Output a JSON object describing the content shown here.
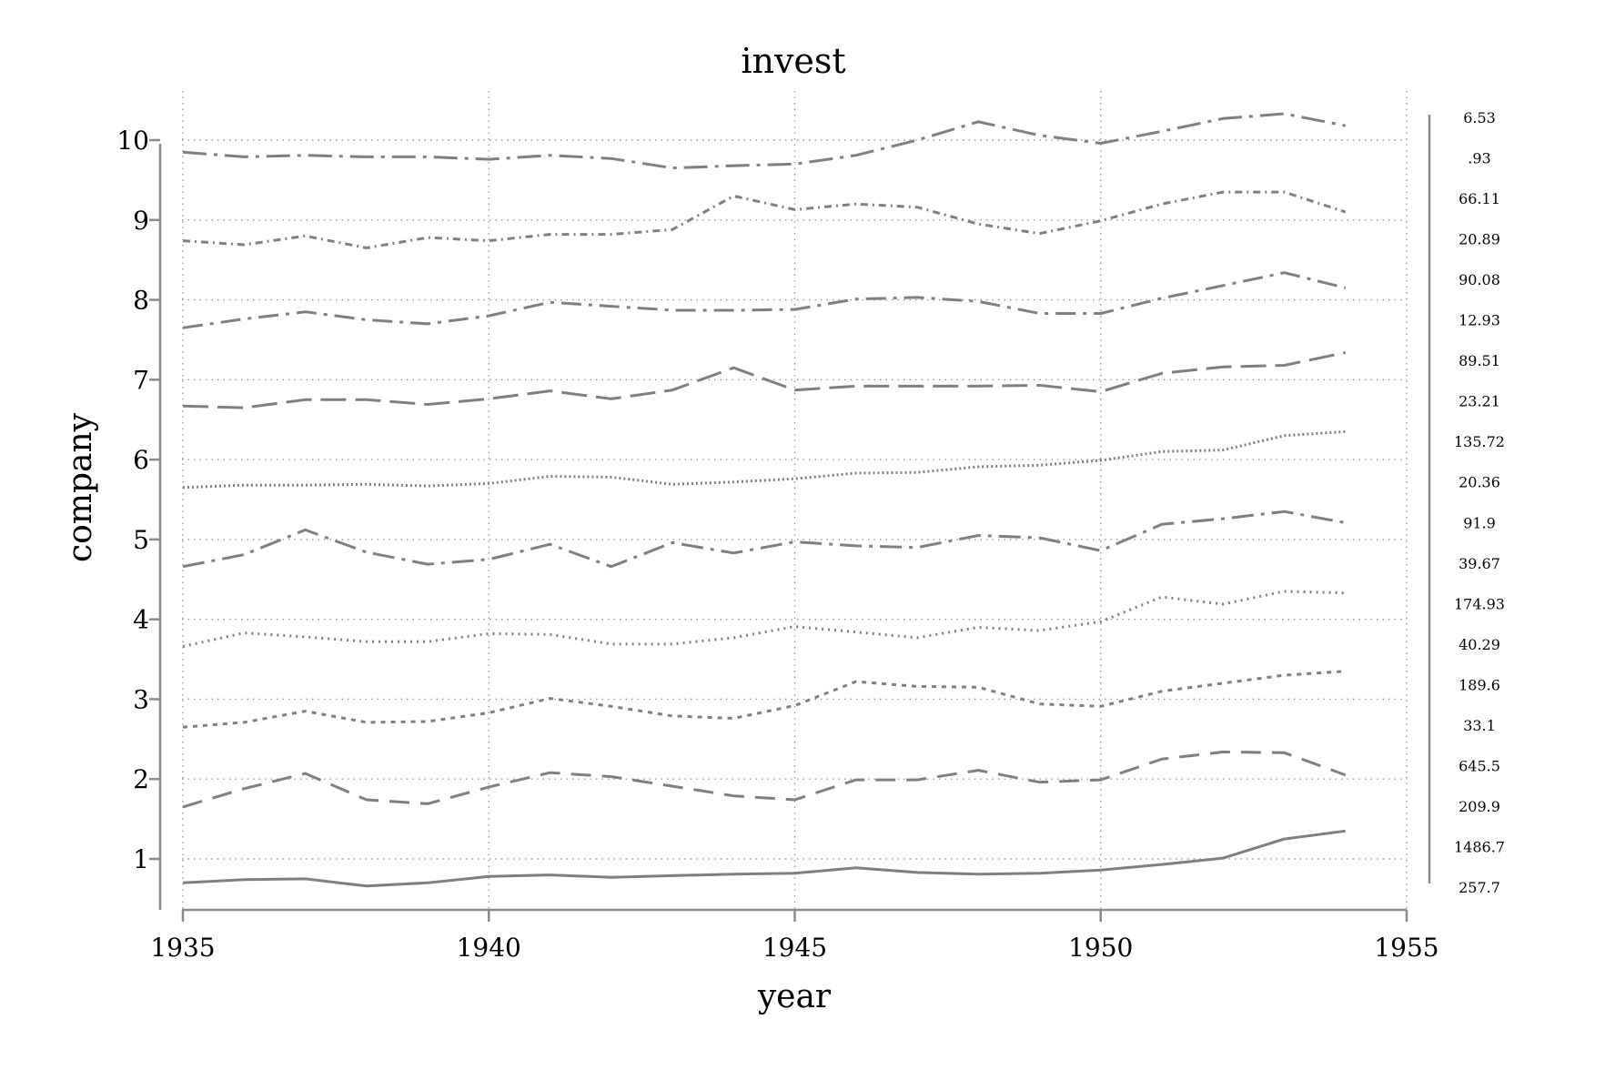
{
  "chart_data": {
    "type": "line",
    "title": "invest",
    "xlabel": "year",
    "ylabel": "company",
    "xlim": [
      1935,
      1955
    ],
    "ylim": [
      0.5,
      10.5
    ],
    "x_ticks": [
      1935,
      1940,
      1945,
      1950,
      1955
    ],
    "y_ticks": [
      1,
      2,
      3,
      4,
      5,
      6,
      7,
      8,
      9,
      10
    ],
    "grid": true,
    "x": [
      1935,
      1936,
      1937,
      1938,
      1939,
      1940,
      1941,
      1942,
      1943,
      1944,
      1945,
      1946,
      1947,
      1948,
      1949,
      1950,
      1951,
      1952,
      1953,
      1954
    ],
    "series": [
      {
        "company": 1,
        "dash": "",
        "values": [
          0.7,
          0.74,
          0.75,
          0.66,
          0.7,
          0.78,
          0.8,
          0.77,
          0.79,
          0.81,
          0.82,
          0.89,
          0.83,
          0.81,
          0.82,
          0.86,
          0.93,
          1.01,
          1.25,
          1.35
        ]
      },
      {
        "company": 2,
        "dash": "22 12",
        "values": [
          1.65,
          1.88,
          2.07,
          1.74,
          1.69,
          1.9,
          2.08,
          2.03,
          1.91,
          1.79,
          1.74,
          1.99,
          1.99,
          2.11,
          1.96,
          1.99,
          2.25,
          2.34,
          2.33,
          2.05
        ]
      },
      {
        "company": 3,
        "dash": "5 6",
        "values": [
          2.65,
          2.71,
          2.85,
          2.71,
          2.72,
          2.83,
          3.01,
          2.91,
          2.79,
          2.76,
          2.92,
          3.22,
          3.16,
          3.15,
          2.94,
          2.91,
          3.1,
          3.2,
          3.3,
          3.35
        ]
      },
      {
        "company": 4,
        "dash": "2 5",
        "values": [
          3.66,
          3.83,
          3.78,
          3.72,
          3.72,
          3.82,
          3.81,
          3.69,
          3.69,
          3.77,
          3.91,
          3.84,
          3.77,
          3.9,
          3.86,
          3.97,
          4.28,
          4.19,
          4.35,
          4.33
        ]
      },
      {
        "company": 5,
        "dash": "24 8 4 8",
        "values": [
          4.66,
          4.81,
          5.12,
          4.84,
          4.69,
          4.75,
          4.94,
          4.66,
          4.96,
          4.83,
          4.97,
          4.92,
          4.9,
          5.05,
          5.02,
          4.86,
          5.19,
          5.26,
          5.35,
          5.21
        ]
      },
      {
        "company": 6,
        "dash": "2 3",
        "values": [
          5.65,
          5.68,
          5.68,
          5.69,
          5.67,
          5.7,
          5.79,
          5.78,
          5.69,
          5.72,
          5.76,
          5.83,
          5.84,
          5.91,
          5.93,
          5.99,
          6.1,
          6.12,
          6.3,
          6.35
        ]
      },
      {
        "company": 7,
        "dash": "28 10",
        "values": [
          6.67,
          6.65,
          6.75,
          6.75,
          6.69,
          6.76,
          6.86,
          6.76,
          6.87,
          7.15,
          6.87,
          6.92,
          6.92,
          6.92,
          6.93,
          6.85,
          7.08,
          7.16,
          7.18,
          7.34
        ]
      },
      {
        "company": 8,
        "dash": "22 8 4 8",
        "values": [
          7.65,
          7.76,
          7.85,
          7.75,
          7.7,
          7.8,
          7.97,
          7.92,
          7.87,
          7.87,
          7.88,
          8.01,
          8.03,
          7.98,
          7.83,
          7.83,
          8.02,
          8.18,
          8.34,
          8.15
        ]
      },
      {
        "company": 9,
        "dash": "8 5 2 5",
        "values": [
          8.74,
          8.69,
          8.8,
          8.65,
          8.78,
          8.74,
          8.82,
          8.82,
          8.88,
          9.3,
          9.13,
          9.2,
          9.16,
          8.95,
          8.83,
          8.99,
          9.2,
          9.35,
          9.35,
          9.1
        ]
      },
      {
        "company": 10,
        "dash": "26 8 4 8",
        "values": [
          9.85,
          9.79,
          9.81,
          9.79,
          9.79,
          9.76,
          9.81,
          9.77,
          9.65,
          9.68,
          9.7,
          9.81,
          10.0,
          10.23,
          10.06,
          9.96,
          10.11,
          10.27,
          10.33,
          10.18
        ]
      }
    ],
    "right_axis_labels": [
      "6.53",
      ".93",
      "66.11",
      "20.89",
      "90.08",
      "12.93",
      "89.51",
      "23.21",
      "135.72",
      "20.36",
      "91.9",
      "39.67",
      "174.93",
      "40.29",
      "189.6",
      "33.1",
      "645.5",
      "209.9",
      "1486.7",
      "257.7"
    ],
    "colors": {
      "series": "#7f7f7f",
      "axis": "#8a8a8a",
      "grid": "#9a9a9a"
    }
  }
}
